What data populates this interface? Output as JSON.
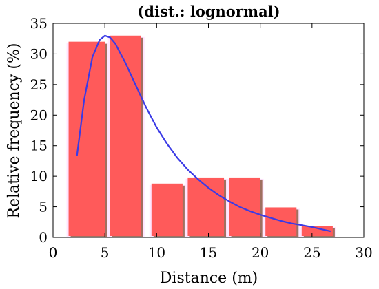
{
  "chart_data": {
    "type": "bar",
    "title": "(dist.: lognormal)",
    "xlabel": "Distance (m)",
    "ylabel": "Relative frequency (%)",
    "xlim": [
      0,
      30
    ],
    "ylim": [
      0,
      35
    ],
    "x_ticks": [
      0,
      5,
      10,
      15,
      20,
      25,
      30
    ],
    "y_ticks": [
      0,
      5,
      10,
      15,
      20,
      25,
      30,
      35
    ],
    "grid": false,
    "bins": [
      {
        "start": 1.5,
        "end": 5.0,
        "value": 32
      },
      {
        "start": 5.5,
        "end": 8.5,
        "value": 33
      },
      {
        "start": 9.5,
        "end": 12.5,
        "value": 8.8
      },
      {
        "start": 13.0,
        "end": 16.5,
        "value": 9.8
      },
      {
        "start": 17.0,
        "end": 20.0,
        "value": 9.8
      },
      {
        "start": 20.5,
        "end": 23.5,
        "value": 4.9
      },
      {
        "start": 24.0,
        "end": 27.0,
        "value": 1.9
      }
    ],
    "fit_curve": {
      "distribution": "lognormal",
      "x": [
        2.3,
        3.0,
        3.8,
        4.5,
        5.0,
        5.5,
        6.0,
        7.0,
        8.0,
        9.0,
        10.0,
        11.0,
        12.0,
        13.0,
        14.0,
        15.0,
        16.0,
        17.0,
        18.0,
        19.0,
        20.0,
        21.0,
        22.0,
        23.0,
        24.0,
        25.0,
        26.0,
        26.8
      ],
      "y": [
        13.3,
        22.5,
        29.5,
        32.3,
        33.0,
        32.7,
        31.7,
        28.5,
        24.8,
        21.2,
        18.0,
        15.3,
        13.0,
        11.1,
        9.5,
        8.1,
        6.9,
        5.9,
        5.0,
        4.3,
        3.7,
        3.2,
        2.7,
        2.3,
        2.0,
        1.7,
        1.3,
        1.0
      ]
    },
    "colors": {
      "bar_fill": "#ff5a5a",
      "bar_shadow": "#a07060",
      "bar_ghost": "#ffe6ff",
      "curve": "#3a3ae6"
    }
  }
}
